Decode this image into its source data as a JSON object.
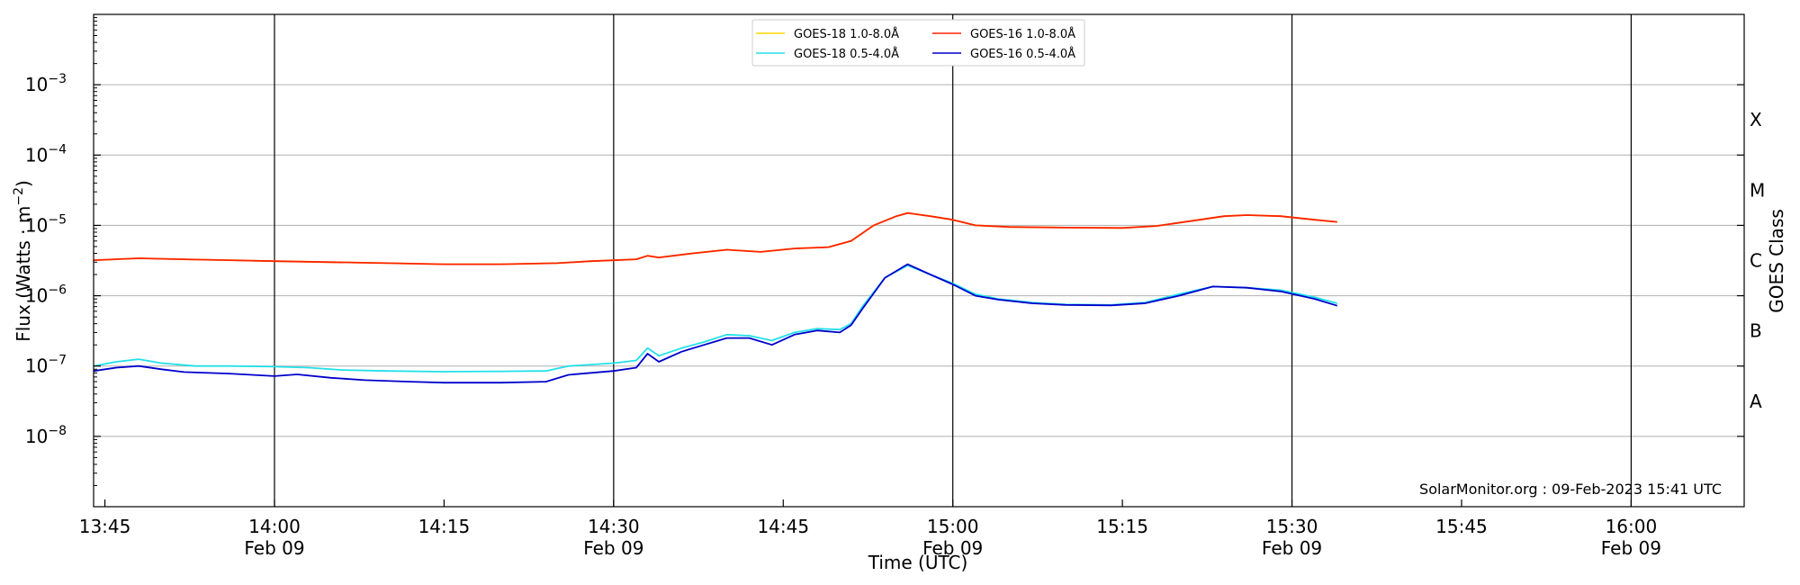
{
  "chart_data": {
    "type": "line",
    "xlabel": "Time (UTC)",
    "ylabel": "Flux (Watts · m",
    "ylabel_exp": "−2",
    "ylabel_close": ")",
    "right_label": "GOES Class",
    "credit": "SolarMonitor.org : 09-Feb-2023 15:41 UTC",
    "yscale": "log",
    "ylim": [
      1e-09,
      0.01
    ],
    "xlim": [
      "13:44",
      "16:10"
    ],
    "grid": "horizontal at decades",
    "legend_position": "top-center",
    "x_ticks": [
      {
        "t": "13:45",
        "label": "13:45",
        "date": ""
      },
      {
        "t": "14:00",
        "label": "14:00",
        "date": "Feb 09"
      },
      {
        "t": "14:15",
        "label": "14:15",
        "date": ""
      },
      {
        "t": "14:30",
        "label": "14:30",
        "date": "Feb 09"
      },
      {
        "t": "14:45",
        "label": "14:45",
        "date": ""
      },
      {
        "t": "15:00",
        "label": "15:00",
        "date": "Feb 09"
      },
      {
        "t": "15:15",
        "label": "15:15",
        "date": ""
      },
      {
        "t": "15:30",
        "label": "15:30",
        "date": "Feb 09"
      },
      {
        "t": "15:45",
        "label": "15:45",
        "date": ""
      },
      {
        "t": "16:00",
        "label": "16:00",
        "date": "Feb 09"
      }
    ],
    "vlines": [
      "14:00",
      "14:30",
      "15:00",
      "15:30",
      "16:00"
    ],
    "y_ticks": [
      {
        "value": 1e-08,
        "base": "10",
        "exp": "−8"
      },
      {
        "value": 1e-07,
        "base": "10",
        "exp": "−7"
      },
      {
        "value": 1e-06,
        "base": "10",
        "exp": "−6"
      },
      {
        "value": 1e-05,
        "base": "10",
        "exp": "−5"
      },
      {
        "value": 0.0001,
        "base": "10",
        "exp": "−4"
      },
      {
        "value": 0.001,
        "base": "10",
        "exp": "−3"
      }
    ],
    "goes_classes": [
      {
        "label": "A",
        "lo": 1e-08,
        "hi": 1e-07
      },
      {
        "label": "B",
        "lo": 1e-07,
        "hi": 1e-06
      },
      {
        "label": "C",
        "lo": 1e-06,
        "hi": 1e-05
      },
      {
        "label": "M",
        "lo": 1e-05,
        "hi": 0.0001
      },
      {
        "label": "X",
        "lo": 0.0001,
        "hi": 0.001
      }
    ],
    "legend": [
      {
        "name": "GOES-18 1.0-8.0Å",
        "color": "#ffd700"
      },
      {
        "name": "GOES-18 0.5-4.0Å",
        "color": "#22e0e8"
      },
      {
        "name": "GOES-16 1.0-8.0Å",
        "color": "#ff2200"
      },
      {
        "name": "GOES-16 0.5-4.0Å",
        "color": "#0000cc"
      }
    ],
    "series": [
      {
        "name": "GOES-18 1.0-8.0Å",
        "color": "#ffd700",
        "points": [
          [
            "13:44",
            3.2e-06
          ],
          [
            "13:48",
            3.4e-06
          ],
          [
            "13:52",
            3.3e-06
          ],
          [
            "13:56",
            3.2e-06
          ],
          [
            "14:00",
            3.1e-06
          ],
          [
            "14:05",
            3e-06
          ],
          [
            "14:10",
            2.9e-06
          ],
          [
            "14:15",
            2.8e-06
          ],
          [
            "14:20",
            2.8e-06
          ],
          [
            "14:25",
            2.9e-06
          ],
          [
            "14:28",
            3.1e-06
          ],
          [
            "14:32",
            3.3e-06
          ],
          [
            "14:33",
            3.7e-06
          ],
          [
            "14:34",
            3.5e-06
          ],
          [
            "14:37",
            4e-06
          ],
          [
            "14:40",
            4.5e-06
          ],
          [
            "14:43",
            4.2e-06
          ],
          [
            "14:46",
            4.7e-06
          ],
          [
            "14:49",
            4.9e-06
          ],
          [
            "14:51",
            6e-06
          ],
          [
            "14:53",
            1e-05
          ],
          [
            "14:55",
            1.35e-05
          ],
          [
            "14:56",
            1.5e-05
          ],
          [
            "14:58",
            1.35e-05
          ],
          [
            "15:00",
            1.2e-05
          ],
          [
            "15:02",
            1e-05
          ],
          [
            "15:05",
            9.5e-06
          ],
          [
            "15:10",
            9.3e-06
          ],
          [
            "15:15",
            9.2e-06
          ],
          [
            "15:18",
            9.8e-06
          ],
          [
            "15:21",
            1.15e-05
          ],
          [
            "15:24",
            1.35e-05
          ],
          [
            "15:26",
            1.4e-05
          ],
          [
            "15:29",
            1.35e-05
          ],
          [
            "15:32",
            1.2e-05
          ],
          [
            "15:34",
            1.12e-05
          ]
        ]
      },
      {
        "name": "GOES-18 0.5-4.0Å",
        "color": "#22e0e8",
        "points": [
          [
            "13:44",
            1e-07
          ],
          [
            "13:46",
            1.15e-07
          ],
          [
            "13:48",
            1.25e-07
          ],
          [
            "13:50",
            1.1e-07
          ],
          [
            "13:53",
            1e-07
          ],
          [
            "13:56",
            1e-07
          ],
          [
            "14:00",
            9.8e-08
          ],
          [
            "14:03",
            9.5e-08
          ],
          [
            "14:06",
            8.8e-08
          ],
          [
            "14:10",
            8.5e-08
          ],
          [
            "14:15",
            8.3e-08
          ],
          [
            "14:20",
            8.4e-08
          ],
          [
            "14:24",
            8.5e-08
          ],
          [
            "14:26",
            1e-07
          ],
          [
            "14:28",
            1.05e-07
          ],
          [
            "14:30",
            1.1e-07
          ],
          [
            "14:32",
            1.2e-07
          ],
          [
            "14:33",
            1.8e-07
          ],
          [
            "14:34",
            1.4e-07
          ],
          [
            "14:36",
            1.8e-07
          ],
          [
            "14:38",
            2.2e-07
          ],
          [
            "14:40",
            2.8e-07
          ],
          [
            "14:42",
            2.7e-07
          ],
          [
            "14:44",
            2.3e-07
          ],
          [
            "14:46",
            3e-07
          ],
          [
            "14:48",
            3.4e-07
          ],
          [
            "14:50",
            3.3e-07
          ],
          [
            "14:51",
            4e-07
          ],
          [
            "14:52",
            7e-07
          ],
          [
            "14:54",
            1.8e-06
          ],
          [
            "14:56",
            2.7e-06
          ],
          [
            "14:58",
            2e-06
          ],
          [
            "15:00",
            1.5e-06
          ],
          [
            "15:02",
            1.05e-06
          ],
          [
            "15:04",
            9e-07
          ],
          [
            "15:07",
            8e-07
          ],
          [
            "15:10",
            7.5e-07
          ],
          [
            "15:14",
            7.4e-07
          ],
          [
            "15:17",
            8e-07
          ],
          [
            "15:20",
            1.05e-06
          ],
          [
            "15:23",
            1.35e-06
          ],
          [
            "15:26",
            1.3e-06
          ],
          [
            "15:29",
            1.2e-06
          ],
          [
            "15:32",
            9.5e-07
          ],
          [
            "15:34",
            7.8e-07
          ]
        ]
      },
      {
        "name": "GOES-16 1.0-8.0Å",
        "color": "#ff2200",
        "points": [
          [
            "13:44",
            3.2e-06
          ],
          [
            "13:48",
            3.4e-06
          ],
          [
            "13:52",
            3.3e-06
          ],
          [
            "13:56",
            3.2e-06
          ],
          [
            "14:00",
            3.1e-06
          ],
          [
            "14:05",
            3e-06
          ],
          [
            "14:10",
            2.9e-06
          ],
          [
            "14:15",
            2.8e-06
          ],
          [
            "14:20",
            2.8e-06
          ],
          [
            "14:25",
            2.9e-06
          ],
          [
            "14:28",
            3.1e-06
          ],
          [
            "14:32",
            3.3e-06
          ],
          [
            "14:33",
            3.7e-06
          ],
          [
            "14:34",
            3.5e-06
          ],
          [
            "14:37",
            4e-06
          ],
          [
            "14:40",
            4.5e-06
          ],
          [
            "14:43",
            4.2e-06
          ],
          [
            "14:46",
            4.7e-06
          ],
          [
            "14:49",
            4.9e-06
          ],
          [
            "14:51",
            6e-06
          ],
          [
            "14:53",
            1e-05
          ],
          [
            "14:55",
            1.35e-05
          ],
          [
            "14:56",
            1.5e-05
          ],
          [
            "14:58",
            1.35e-05
          ],
          [
            "15:00",
            1.2e-05
          ],
          [
            "15:02",
            1e-05
          ],
          [
            "15:05",
            9.5e-06
          ],
          [
            "15:10",
            9.3e-06
          ],
          [
            "15:15",
            9.2e-06
          ],
          [
            "15:18",
            9.8e-06
          ],
          [
            "15:21",
            1.15e-05
          ],
          [
            "15:24",
            1.35e-05
          ],
          [
            "15:26",
            1.4e-05
          ],
          [
            "15:29",
            1.35e-05
          ],
          [
            "15:32",
            1.2e-05
          ],
          [
            "15:34",
            1.12e-05
          ]
        ]
      },
      {
        "name": "GOES-16 0.5-4.0Å",
        "color": "#0000cc",
        "points": [
          [
            "13:44",
            8.5e-08
          ],
          [
            "13:46",
            9.5e-08
          ],
          [
            "13:48",
            1e-07
          ],
          [
            "13:50",
            9e-08
          ],
          [
            "13:52",
            8.2e-08
          ],
          [
            "13:56",
            7.8e-08
          ],
          [
            "14:00",
            7.2e-08
          ],
          [
            "14:02",
            7.6e-08
          ],
          [
            "14:05",
            6.8e-08
          ],
          [
            "14:08",
            6.3e-08
          ],
          [
            "14:12",
            6e-08
          ],
          [
            "14:15",
            5.8e-08
          ],
          [
            "14:20",
            5.8e-08
          ],
          [
            "14:24",
            6e-08
          ],
          [
            "14:26",
            7.5e-08
          ],
          [
            "14:28",
            8e-08
          ],
          [
            "14:30",
            8.5e-08
          ],
          [
            "14:32",
            9.5e-08
          ],
          [
            "14:33",
            1.5e-07
          ],
          [
            "14:34",
            1.15e-07
          ],
          [
            "14:36",
            1.6e-07
          ],
          [
            "14:38",
            2e-07
          ],
          [
            "14:40",
            2.5e-07
          ],
          [
            "14:42",
            2.5e-07
          ],
          [
            "14:44",
            2e-07
          ],
          [
            "14:46",
            2.8e-07
          ],
          [
            "14:48",
            3.2e-07
          ],
          [
            "14:50",
            3e-07
          ],
          [
            "14:51",
            3.8e-07
          ],
          [
            "14:52",
            6.5e-07
          ],
          [
            "14:54",
            1.8e-06
          ],
          [
            "14:56",
            2.8e-06
          ],
          [
            "14:58",
            2e-06
          ],
          [
            "15:00",
            1.45e-06
          ],
          [
            "15:02",
            1e-06
          ],
          [
            "15:04",
            8.8e-07
          ],
          [
            "15:07",
            7.8e-07
          ],
          [
            "15:10",
            7.4e-07
          ],
          [
            "15:14",
            7.3e-07
          ],
          [
            "15:17",
            7.8e-07
          ],
          [
            "15:20",
            1e-06
          ],
          [
            "15:23",
            1.35e-06
          ],
          [
            "15:26",
            1.3e-06
          ],
          [
            "15:29",
            1.15e-06
          ],
          [
            "15:32",
            9e-07
          ],
          [
            "15:34",
            7.2e-07
          ]
        ]
      }
    ]
  }
}
